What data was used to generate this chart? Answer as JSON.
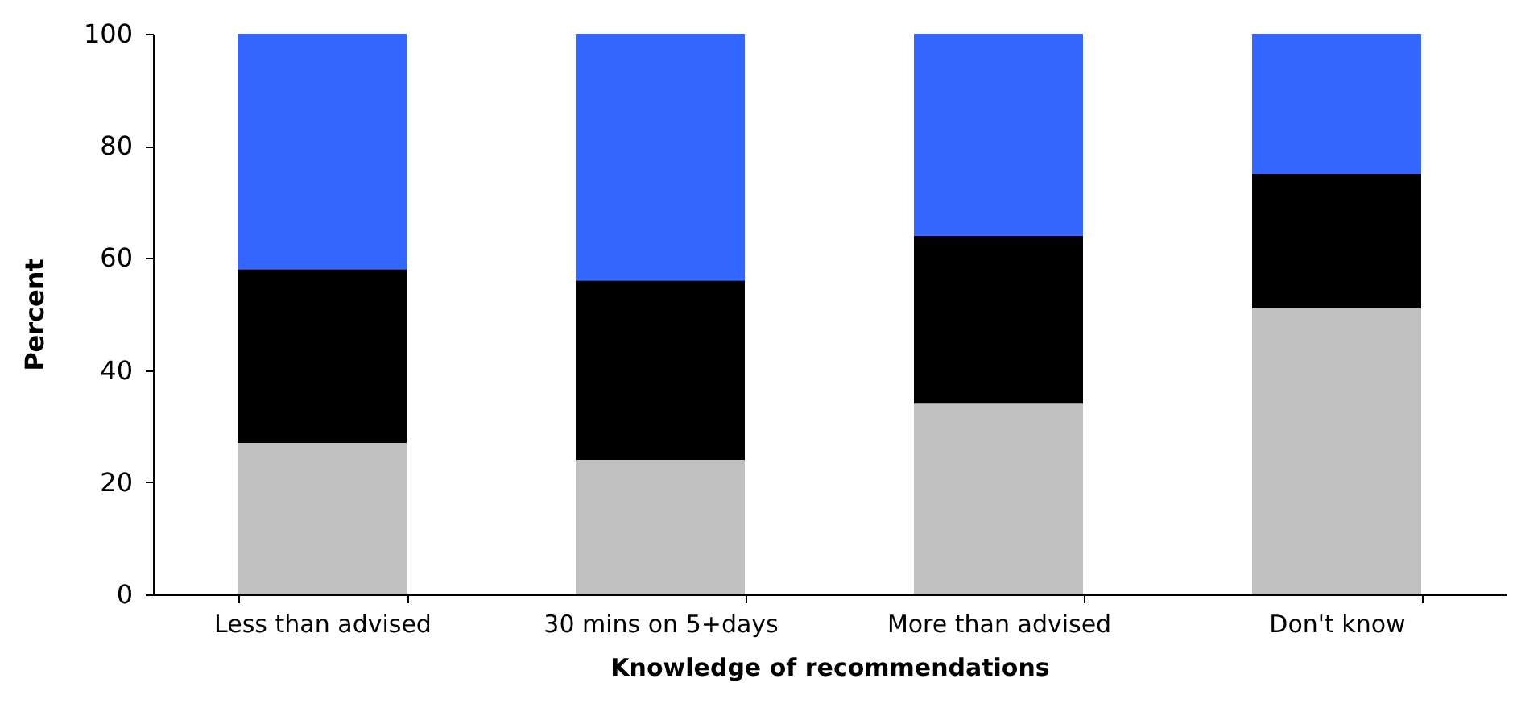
{
  "chart_data": {
    "type": "bar",
    "stacked": true,
    "xlabel": "Knowledge of recommendations",
    "ylabel": "Percent",
    "categories": [
      "Less than advised",
      "30 mins on 5+days",
      "More than advised",
      "Don't know"
    ],
    "series": [
      {
        "color": "#c0c0c0",
        "values": [
          27,
          24,
          34,
          51
        ]
      },
      {
        "color": "#000000",
        "values": [
          31,
          32,
          30,
          24
        ]
      },
      {
        "color": "#3366ff",
        "values": [
          42,
          44,
          36,
          25
        ]
      }
    ],
    "ylim": [
      0,
      100
    ],
    "yticks": [
      0,
      20,
      40,
      60,
      80,
      100
    ],
    "grid": false,
    "legend": false
  }
}
